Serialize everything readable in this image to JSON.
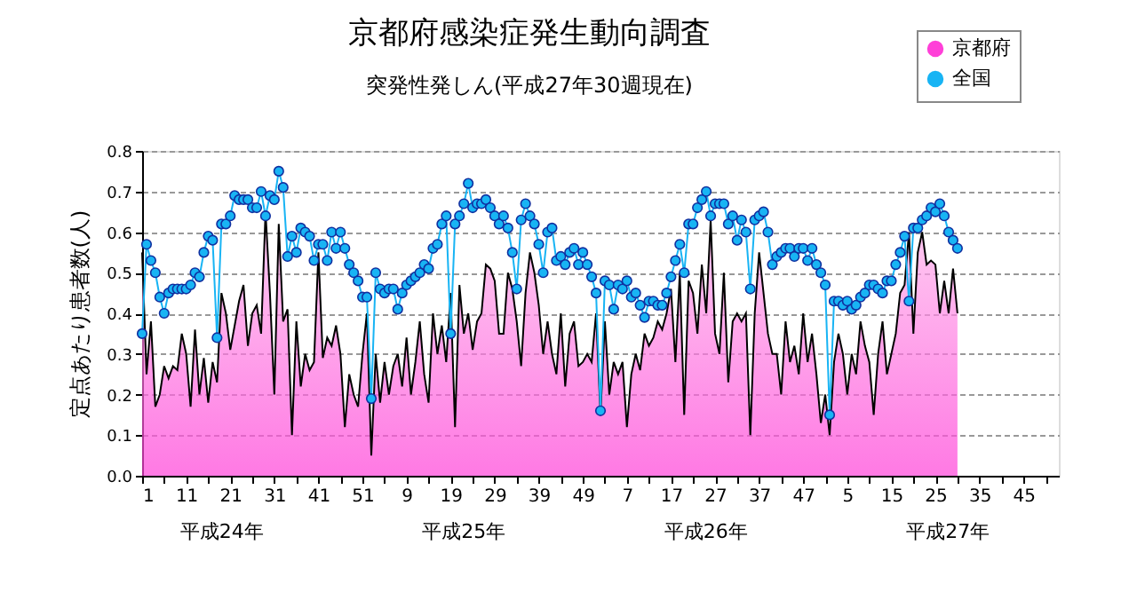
{
  "chart_data": {
    "type": "area",
    "title": "京都府感染症発生動向調査",
    "subtitle": "突発性発しん(平成27年30週現在)",
    "ylabel": "定点あたり患者数(人)",
    "categories": [
      "1",
      null,
      null,
      null,
      null,
      null,
      null,
      null,
      null,
      null,
      "11",
      null,
      null,
      null,
      null,
      null,
      null,
      null,
      null,
      null,
      "21",
      null,
      null,
      null,
      null,
      null,
      null,
      null,
      null,
      null,
      "31",
      null,
      null,
      null,
      null,
      null,
      null,
      null,
      null,
      null,
      "41",
      null,
      null,
      null,
      null,
      null,
      null,
      null,
      null,
      null,
      "51",
      null,
      null,
      null,
      null,
      null,
      null,
      null,
      null,
      null,
      "9",
      null,
      null,
      null,
      null,
      null,
      null,
      null,
      null,
      null,
      "19",
      null,
      null,
      null,
      null,
      null,
      null,
      null,
      null,
      null,
      "29",
      null,
      null,
      null,
      null,
      null,
      null,
      null,
      null,
      null,
      "39",
      null,
      null,
      null,
      null,
      null,
      null,
      null,
      null,
      null,
      "49",
      null,
      null,
      null,
      null,
      null,
      null,
      null,
      null,
      null,
      "7",
      null,
      null,
      null,
      null,
      null,
      null,
      null,
      null,
      null,
      "17",
      null,
      null,
      null,
      null,
      null,
      null,
      null,
      null,
      null,
      "27",
      null,
      null,
      null,
      null,
      null,
      null,
      null,
      null,
      null,
      "37",
      null,
      null,
      null,
      null,
      null,
      null,
      null,
      null,
      null,
      "47",
      null,
      null,
      null,
      null,
      null,
      null,
      null,
      null,
      null,
      "5",
      null,
      null,
      null,
      null,
      null,
      null,
      null,
      null,
      null,
      "15",
      null,
      null,
      null,
      null,
      null,
      null,
      null,
      null,
      null,
      "25",
      null,
      null,
      null,
      null,
      null,
      null,
      null,
      null,
      null,
      "35",
      null,
      null,
      null,
      null,
      null,
      null,
      null,
      null,
      null,
      "45",
      null,
      null,
      null,
      null,
      null,
      null,
      null,
      null
    ],
    "series": [
      {
        "name": "京都府",
        "color": "#ff40d8",
        "values": [
          0.55,
          0.25,
          0.38,
          0.17,
          0.2,
          0.27,
          0.24,
          0.27,
          0.26,
          0.35,
          0.3,
          0.17,
          0.36,
          0.2,
          0.29,
          0.18,
          0.28,
          0.23,
          0.45,
          0.4,
          0.31,
          0.37,
          0.43,
          0.47,
          0.32,
          0.4,
          0.42,
          0.35,
          0.65,
          0.45,
          0.2,
          0.62,
          0.38,
          0.41,
          0.1,
          0.38,
          0.22,
          0.3,
          0.26,
          0.28,
          0.55,
          0.29,
          0.34,
          0.32,
          0.37,
          0.3,
          0.12,
          0.25,
          0.2,
          0.17,
          0.3,
          0.4,
          0.05,
          0.3,
          0.18,
          0.28,
          0.2,
          0.27,
          0.3,
          0.22,
          0.34,
          0.2,
          0.28,
          0.38,
          0.25,
          0.18,
          0.4,
          0.3,
          0.37,
          0.28,
          0.45,
          0.12,
          0.47,
          0.35,
          0.4,
          0.31,
          0.38,
          0.4,
          0.52,
          0.51,
          0.48,
          0.35,
          0.35,
          0.5,
          0.46,
          0.38,
          0.27,
          0.45,
          0.55,
          0.5,
          0.42,
          0.3,
          0.38,
          0.3,
          0.25,
          0.4,
          0.22,
          0.35,
          0.38,
          0.27,
          0.28,
          0.3,
          0.28,
          0.4,
          0.15,
          0.38,
          0.2,
          0.28,
          0.25,
          0.28,
          0.12,
          0.25,
          0.3,
          0.26,
          0.35,
          0.32,
          0.34,
          0.38,
          0.36,
          0.4,
          0.46,
          0.28,
          0.5,
          0.15,
          0.48,
          0.45,
          0.35,
          0.52,
          0.4,
          0.63,
          0.35,
          0.3,
          0.5,
          0.23,
          0.38,
          0.4,
          0.38,
          0.4,
          0.1,
          0.4,
          0.55,
          0.45,
          0.35,
          0.3,
          0.3,
          0.2,
          0.38,
          0.28,
          0.32,
          0.25,
          0.4,
          0.28,
          0.35,
          0.25,
          0.13,
          0.2,
          0.1,
          0.28,
          0.35,
          0.3,
          0.2,
          0.3,
          0.25,
          0.38,
          0.32,
          0.28,
          0.15,
          0.3,
          0.38,
          0.25,
          0.3,
          0.35,
          0.45,
          0.47,
          0.6,
          0.35,
          0.55,
          0.6,
          0.52,
          0.53,
          0.52,
          0.4,
          0.48,
          0.4,
          0.51,
          0.4,
          null,
          null,
          null,
          null,
          null,
          null,
          null,
          null,
          null,
          null,
          null,
          null,
          null,
          null,
          null,
          null,
          null,
          null,
          null,
          null,
          null,
          null,
          null
        ]
      },
      {
        "name": "全国",
        "type": "line",
        "marker": "circle",
        "color": "#18b4f4",
        "values": [
          0.35,
          0.57,
          0.53,
          0.5,
          0.44,
          0.4,
          0.45,
          0.46,
          0.46,
          0.46,
          0.46,
          0.47,
          0.5,
          0.49,
          0.55,
          0.59,
          0.58,
          0.34,
          0.62,
          0.62,
          0.64,
          0.69,
          0.68,
          0.68,
          0.68,
          0.66,
          0.66,
          0.7,
          0.64,
          0.69,
          0.68,
          0.75,
          0.71,
          0.54,
          0.59,
          0.55,
          0.61,
          0.6,
          0.59,
          0.53,
          0.57,
          0.57,
          0.53,
          0.6,
          0.56,
          0.6,
          0.56,
          0.52,
          0.5,
          0.48,
          0.44,
          0.44,
          0.19,
          0.5,
          0.46,
          0.45,
          0.46,
          0.46,
          0.41,
          0.45,
          0.47,
          0.48,
          0.49,
          0.5,
          0.52,
          0.51,
          0.56,
          0.57,
          0.62,
          0.64,
          0.35,
          0.62,
          0.64,
          0.67,
          0.72,
          0.66,
          0.67,
          0.67,
          0.68,
          0.66,
          0.64,
          0.62,
          0.64,
          0.61,
          0.55,
          0.46,
          0.63,
          0.67,
          0.64,
          0.62,
          0.57,
          0.5,
          0.6,
          0.61,
          0.53,
          0.54,
          0.52,
          0.55,
          0.56,
          0.52,
          0.55,
          0.52,
          0.49,
          0.45,
          0.16,
          0.48,
          0.47,
          0.41,
          0.47,
          0.46,
          0.48,
          0.44,
          0.45,
          0.42,
          0.39,
          0.43,
          0.43,
          0.42,
          0.42,
          0.45,
          0.49,
          0.53,
          0.57,
          0.5,
          0.62,
          0.62,
          0.66,
          0.68,
          0.7,
          0.64,
          0.67,
          0.67,
          0.67,
          0.62,
          0.64,
          0.58,
          0.63,
          0.6,
          0.46,
          0.63,
          0.64,
          0.65,
          0.6,
          0.52,
          0.54,
          0.55,
          0.56,
          0.56,
          0.54,
          0.56,
          0.56,
          0.53,
          0.56,
          0.52,
          0.5,
          0.47,
          0.15,
          0.43,
          0.43,
          0.42,
          0.43,
          0.41,
          0.42,
          0.44,
          0.45,
          0.47,
          0.47,
          0.46,
          0.45,
          0.48,
          0.48,
          0.52,
          0.55,
          0.59,
          0.43,
          0.61,
          0.61,
          0.63,
          0.64,
          0.66,
          0.65,
          0.67,
          0.64,
          0.6,
          0.58,
          0.56,
          null,
          null,
          null,
          null,
          null,
          null,
          null,
          null,
          null,
          null,
          null,
          null,
          null,
          null,
          null,
          null,
          null,
          null,
          null,
          null,
          null,
          null,
          null
        ]
      }
    ],
    "ylim": [
      0,
      0.8
    ],
    "yticks": [
      {
        "value": 0,
        "label": "0.0"
      },
      {
        "value": 0.1,
        "label": "0.1"
      },
      {
        "value": 0.2,
        "label": "0.2"
      },
      {
        "value": 0.3,
        "label": "0.3"
      },
      {
        "value": 0.4,
        "label": "0.4"
      },
      {
        "value": 0.5,
        "label": "0.5"
      },
      {
        "value": 0.6,
        "label": "0.6"
      },
      {
        "value": 0.7,
        "label": "0.7"
      },
      {
        "value": 0.8,
        "label": "0.8"
      }
    ],
    "annotations": [
      "平成24年",
      "平成25年",
      "平成26年",
      "平成27年"
    ],
    "grid": "y",
    "legend": "top right"
  }
}
